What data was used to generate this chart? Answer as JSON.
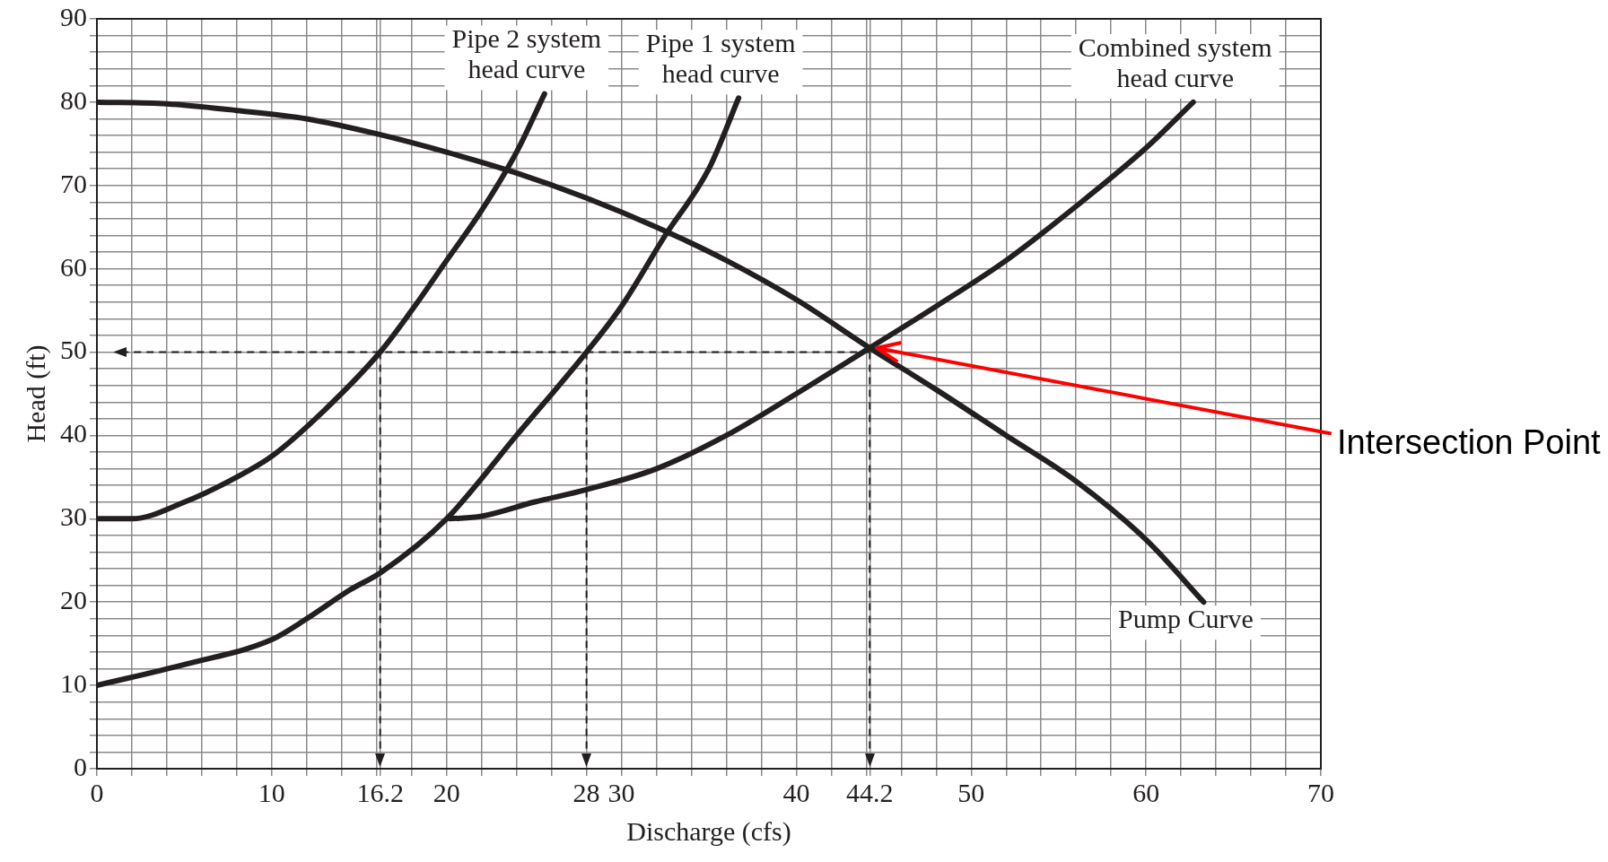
{
  "chart_data": {
    "type": "line",
    "xlabel": "Discharge (cfs)",
    "ylabel": "Head (ft)",
    "xlim": [
      0,
      70
    ],
    "ylim": [
      0,
      90
    ],
    "xticks": [
      0,
      {
        "value": 2,
        "label": null
      },
      {
        "value": 4,
        "label": null
      },
      {
        "value": 6,
        "label": null
      },
      {
        "value": 8,
        "label": null
      },
      10,
      {
        "value": 12,
        "label": null
      },
      {
        "value": 14,
        "label": null
      },
      {
        "value": 16,
        "label": null
      },
      16.2,
      {
        "value": 18,
        "label": null
      },
      20,
      {
        "value": 22,
        "label": null
      },
      {
        "value": 24,
        "label": null
      },
      {
        "value": 26,
        "label": null
      },
      28,
      30,
      {
        "value": 32,
        "label": null
      },
      {
        "value": 34,
        "label": null
      },
      {
        "value": 36,
        "label": null
      },
      {
        "value": 38,
        "label": null
      },
      40,
      {
        "value": 42,
        "label": null
      },
      {
        "value": 44,
        "label": null
      },
      44.2,
      {
        "value": 46,
        "label": null
      },
      {
        "value": 48,
        "label": null
      },
      50,
      {
        "value": 52,
        "label": null
      },
      {
        "value": 54,
        "label": null
      },
      {
        "value": 56,
        "label": null
      },
      {
        "value": 58,
        "label": null
      },
      60,
      {
        "value": 62,
        "label": null
      },
      {
        "value": 64,
        "label": null
      },
      {
        "value": 66,
        "label": null
      },
      {
        "value": 68,
        "label": null
      },
      70
    ],
    "yticks": [
      0,
      {
        "value": 2,
        "label": null
      },
      {
        "value": 4,
        "label": null
      },
      {
        "value": 6,
        "label": null
      },
      {
        "value": 8,
        "label": null
      },
      10,
      {
        "value": 12,
        "label": null
      },
      {
        "value": 14,
        "label": null
      },
      {
        "value": 16,
        "label": null
      },
      {
        "value": 18,
        "label": null
      },
      20,
      {
        "value": 22,
        "label": null
      },
      {
        "value": 24,
        "label": null
      },
      {
        "value": 26,
        "label": null
      },
      {
        "value": 28,
        "label": null
      },
      30,
      {
        "value": 32,
        "label": null
      },
      {
        "value": 34,
        "label": null
      },
      {
        "value": 36,
        "label": null
      },
      {
        "value": 38,
        "label": null
      },
      40,
      {
        "value": 42,
        "label": null
      },
      {
        "value": 44,
        "label": null
      },
      {
        "value": 46,
        "label": null
      },
      {
        "value": 48,
        "label": null
      },
      50,
      {
        "value": 52,
        "label": null
      },
      {
        "value": 54,
        "label": null
      },
      {
        "value": 56,
        "label": null
      },
      {
        "value": 58,
        "label": null
      },
      60,
      {
        "value": 62,
        "label": null
      },
      {
        "value": 64,
        "label": null
      },
      {
        "value": 66,
        "label": null
      },
      {
        "value": 68,
        "label": null
      },
      70,
      {
        "value": 72,
        "label": null
      },
      {
        "value": 74,
        "label": null
      },
      {
        "value": 76,
        "label": null
      },
      {
        "value": 78,
        "label": null
      },
      80,
      {
        "value": 82,
        "label": null
      },
      {
        "value": 84,
        "label": null
      },
      {
        "value": 86,
        "label": null
      },
      {
        "value": 88,
        "label": null
      },
      90
    ],
    "grid": true,
    "legend": false,
    "marker": "none",
    "line_style": "solid",
    "series": [
      {
        "name": "Pipe 2 system head curve",
        "color": "#231f20",
        "x": [
          0,
          2,
          5,
          8,
          10,
          13,
          16.2,
          18,
          20,
          22,
          24,
          25.6
        ],
        "values": [
          30,
          30,
          32,
          35,
          37.5,
          43,
          50,
          55,
          61,
          67,
          74,
          81
        ]
      },
      {
        "name": "Pipe 1 system head curve",
        "color": "#231f20",
        "x": [
          0,
          5,
          10,
          12,
          14.5,
          16.2,
          20,
          24,
          28,
          30,
          32.5,
          35,
          36.7
        ],
        "values": [
          10,
          12.5,
          15.5,
          18,
          21.5,
          23.5,
          30,
          40,
          50,
          55.5,
          64,
          72,
          80.5
        ]
      },
      {
        "name": "Combined system head curve",
        "color": "#231f20",
        "x": [
          20.2,
          22,
          25,
          28,
          32,
          36,
          40,
          44.2,
          48,
          52,
          56,
          60,
          62.7
        ],
        "values": [
          30,
          30.3,
          32,
          33.5,
          36,
          40,
          45,
          50.5,
          55.5,
          61,
          67.5,
          74.5,
          80
        ]
      },
      {
        "name": "Pump Curve",
        "color": "#231f20",
        "x": [
          0,
          4,
          8,
          12,
          16,
          20,
          24,
          28,
          32,
          36,
          40,
          44.2,
          48,
          52,
          56,
          60,
          63.3
        ],
        "values": [
          80,
          79.8,
          79,
          78,
          76.2,
          74,
          71.5,
          68.5,
          65,
          61,
          56.3,
          50.5,
          45.5,
          40,
          34.5,
          27.5,
          20
        ]
      }
    ],
    "ref_lines": [
      {
        "axis": "y",
        "value": 50,
        "color": "#231f20",
        "line_style": "dashed"
      },
      {
        "axis": "x",
        "value": 16.2,
        "color": "#231f20",
        "line_style": "dashed"
      },
      {
        "axis": "x",
        "value": 28,
        "color": "#231f20",
        "line_style": "dashed"
      },
      {
        "axis": "x",
        "value": 44.2,
        "color": "#231f20",
        "line_style": "dashed"
      }
    ],
    "annotations": [
      {
        "text": "Intersection Point",
        "x": 44.2,
        "y": 50.5
      }
    ]
  }
}
